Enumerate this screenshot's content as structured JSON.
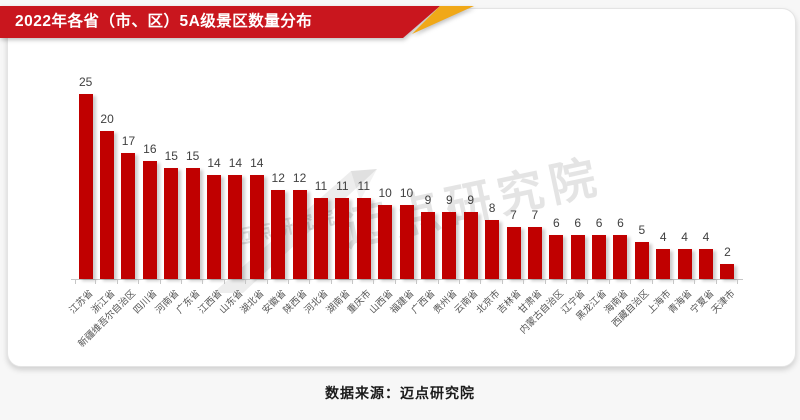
{
  "header": {
    "title": "2022年各省（市、区）5A级景区数量分布"
  },
  "footer": {
    "source": "数据来源：迈点研究院"
  },
  "watermark": {
    "text": "迈点研究院"
  },
  "colors": {
    "banner_red": "#C9161E",
    "fold_gold": "#F0A818",
    "bar_red": "#C00000",
    "axis_gray": "#C6C6C6",
    "value_label": "#404040",
    "tick_label": "#555555"
  },
  "chart_data": {
    "type": "bar",
    "title": "2022年各省（市、区）5A级景区数量分布",
    "categories": [
      "江苏省",
      "浙江省",
      "新疆维吾尔自治区",
      "四川省",
      "河南省",
      "广东省",
      "江西省",
      "山东省",
      "湖北省",
      "安徽省",
      "陕西省",
      "河北省",
      "湖南省",
      "重庆市",
      "山西省",
      "福建省",
      "广西省",
      "贵州省",
      "云南省",
      "北京市",
      "吉林省",
      "甘肃省",
      "内蒙古自治区",
      "辽宁省",
      "黑龙江省",
      "海南省",
      "西藏自治区",
      "上海市",
      "青海省",
      "宁夏省",
      "天津市"
    ],
    "values": [
      25,
      20,
      17,
      16,
      15,
      15,
      14,
      14,
      14,
      12,
      12,
      11,
      11,
      11,
      10,
      10,
      9,
      9,
      9,
      8,
      7,
      7,
      6,
      6,
      6,
      6,
      5,
      4,
      4,
      4,
      2
    ],
    "xlabel": "",
    "ylabel": "",
    "ylim": [
      0,
      26
    ],
    "grid": false,
    "y_axis_visible": false,
    "data_labels": true,
    "bar_color": "#C00000",
    "legend": null,
    "source": "数据来源：迈点研究院"
  }
}
